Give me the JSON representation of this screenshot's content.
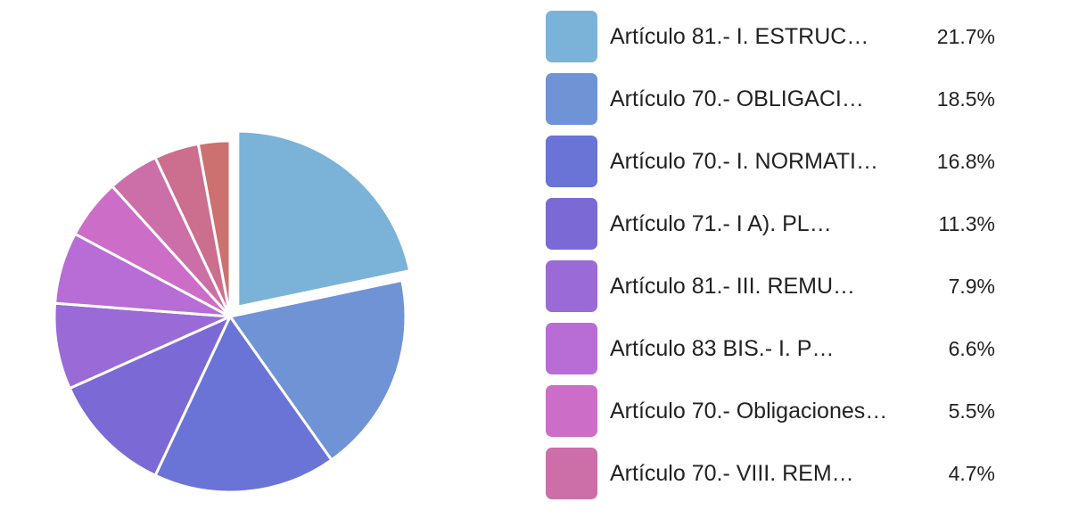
{
  "chart_data": {
    "type": "pie",
    "slices": [
      {
        "label": "Artículo 81.- I. ESTRUC…",
        "percent_label": "21.7%",
        "value": 21.7,
        "color": "#7ab3d7",
        "exploded": true
      },
      {
        "label": "Artículo 70.- OBLIGACI…",
        "percent_label": "18.5%",
        "value": 18.5,
        "color": "#7093d6"
      },
      {
        "label": "Artículo 70.- I. NORMATI…",
        "percent_label": "16.8%",
        "value": 16.8,
        "color": "#6a73d6"
      },
      {
        "label": "Artículo 71.- I A). PL…",
        "percent_label": "11.3%",
        "value": 11.3,
        "color": "#7b69d6"
      },
      {
        "label": "Artículo 81.- III. REMU…",
        "percent_label": "7.9%",
        "value": 7.9,
        "color": "#9a6ad6"
      },
      {
        "label": "Artículo 83 BIS.- I. P…",
        "percent_label": "6.6%",
        "value": 6.6,
        "color": "#b86dd6"
      },
      {
        "label": "Artículo 70.- Obligaciones…",
        "percent_label": "5.5%",
        "value": 5.5,
        "color": "#cc6ec8"
      },
      {
        "label": "Artículo 70.- VIII. REM…",
        "percent_label": "4.7%",
        "value": 4.7,
        "color": "#cc6ea8"
      },
      {
        "label": "",
        "value": 4.1,
        "color": "#cc6e8e"
      },
      {
        "label": "",
        "value": 2.9,
        "color": "#cc7070"
      }
    ]
  }
}
